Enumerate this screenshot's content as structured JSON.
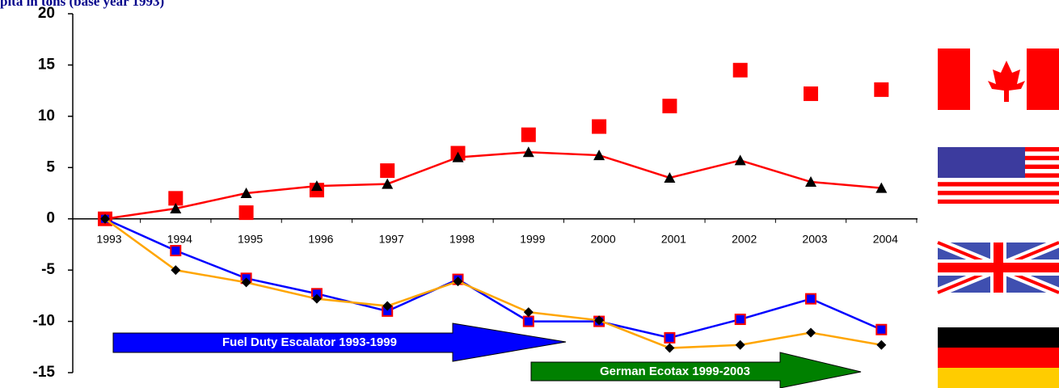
{
  "chart_data": {
    "type": "line",
    "title": "pita in tons (base year 1993)",
    "categories": [
      "1993",
      "1994",
      "1995",
      "1996",
      "1997",
      "1998",
      "1999",
      "2000",
      "2001",
      "2002",
      "2003",
      "2004"
    ],
    "ylim": [
      -15,
      20
    ],
    "yticks": [
      -15,
      -10,
      -5,
      0,
      5,
      10,
      15,
      20
    ],
    "series": [
      {
        "color": "#ff0000",
        "marker": "square",
        "line": false,
        "values": [
          0,
          2,
          0.6,
          2.8,
          4.7,
          6.4,
          8.2,
          9,
          11,
          14.5,
          12.2,
          12.6
        ]
      },
      {
        "color": "#ff0000",
        "marker": "triangle",
        "marker_color": "#000000",
        "line": true,
        "values": [
          0,
          1,
          2.5,
          3.2,
          3.4,
          6,
          6.5,
          6.2,
          4,
          5.7,
          3.6,
          3
        ]
      },
      {
        "color": "#0000ff",
        "marker": "square",
        "marker_color": "#0000ff",
        "marker_edge": "#ff0000",
        "line": true,
        "values": [
          0,
          -3.1,
          -5.8,
          -7.3,
          -9,
          -5.9,
          -10,
          -10,
          -11.6,
          -9.8,
          -7.8,
          -10.8
        ]
      },
      {
        "color": "#ffa500",
        "marker": "diamond",
        "marker_color": "#000000",
        "line": true,
        "values": [
          0,
          -5,
          -6.2,
          -7.8,
          -8.5,
          -6.1,
          -9.1,
          -9.9,
          -12.6,
          -12.3,
          -11.1,
          -12.3
        ]
      }
    ],
    "annotations": [
      "Fuel Duty Escalator 1993-1999",
      "German Ecotax 1999-2003"
    ]
  }
}
